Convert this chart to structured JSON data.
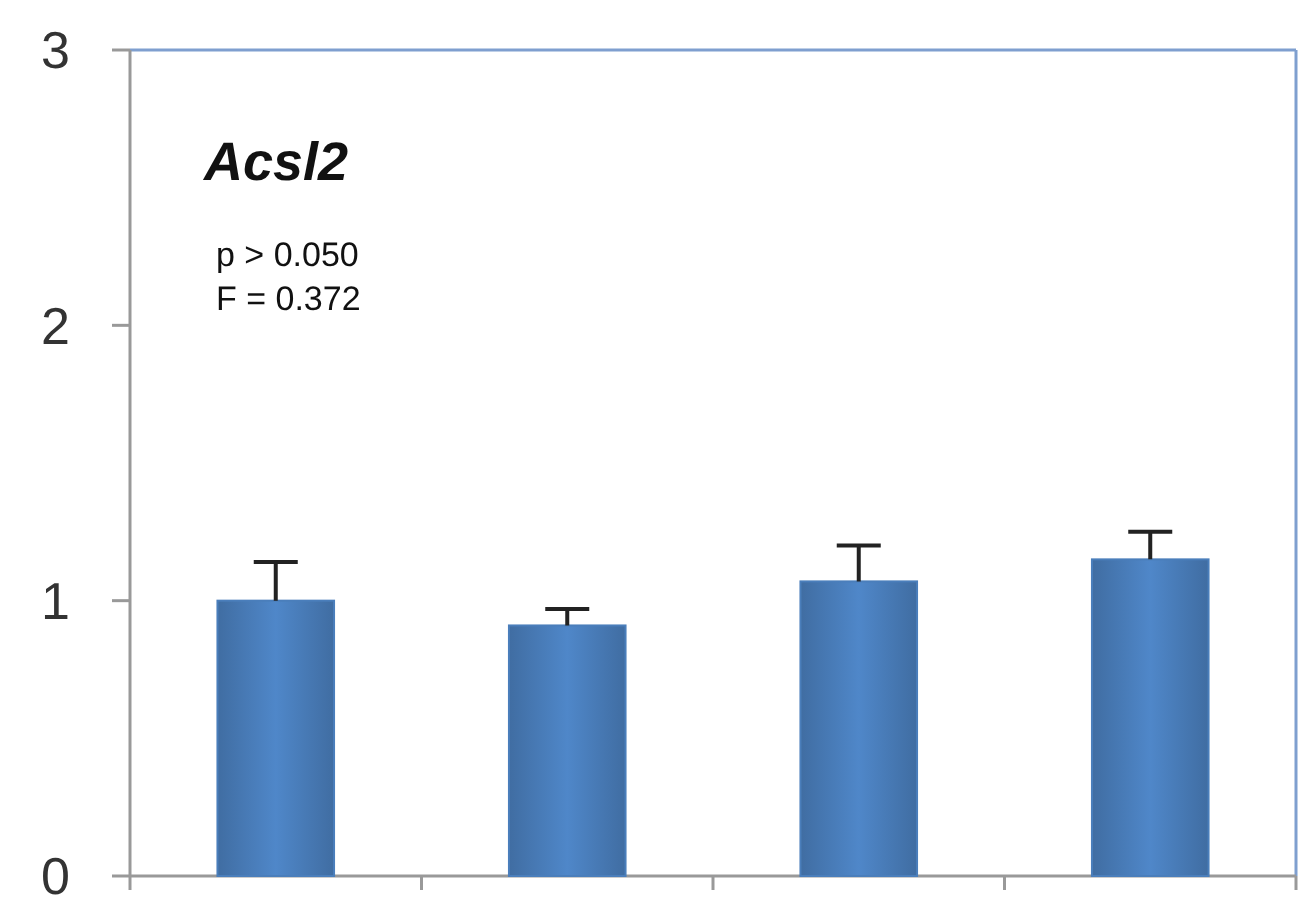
{
  "chart_data": {
    "type": "bar",
    "title": "Acsl2",
    "annotations": [
      "p > 0.050",
      "F = 0.372"
    ],
    "categories": [
      null,
      null,
      null,
      null
    ],
    "values": [
      1.0,
      0.91,
      1.07,
      1.15
    ],
    "errors": [
      [
        1.0,
        1.14
      ],
      [
        0.91,
        0.97
      ],
      [
        1.07,
        1.2
      ],
      [
        1.15,
        1.25
      ]
    ],
    "color": "#4a7ebb",
    "ylim": [
      0,
      3
    ],
    "yticks": [
      0,
      1,
      2,
      3
    ]
  }
}
